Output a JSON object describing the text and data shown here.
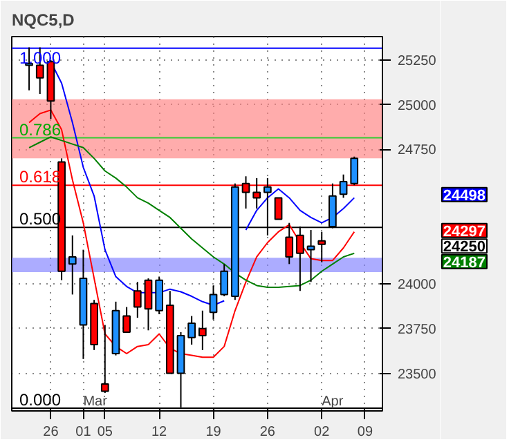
{
  "chart_data": {
    "type": "candlestick",
    "title": "NQC5,D",
    "categories": [
      null,
      null,
      "26",
      null,
      null,
      "01",
      null,
      "05",
      null,
      null,
      null,
      null,
      "12",
      null,
      null,
      null,
      null,
      "19",
      null,
      null,
      null,
      null,
      "26",
      null,
      null,
      null,
      null,
      "02",
      null,
      null,
      null,
      "09"
    ],
    "ohlc": [
      [
        25220,
        25320,
        25080,
        25230
      ],
      [
        25220,
        25320,
        25060,
        25150
      ],
      [
        25240,
        25250,
        24920,
        25020
      ],
      [
        24680,
        24700,
        24020,
        24070
      ],
      [
        24110,
        24270,
        23940,
        24150
      ],
      [
        23770,
        24190,
        23580,
        24030
      ],
      [
        23890,
        23910,
        23630,
        23660
      ],
      [
        23440,
        23770,
        23390,
        23400
      ],
      [
        23610,
        23900,
        23600,
        23850
      ],
      [
        23820,
        23870,
        23730,
        23730
      ],
      [
        23960,
        24010,
        23810,
        23870
      ],
      [
        24020,
        24030,
        23740,
        23860
      ],
      [
        23850,
        24040,
        23830,
        24020
      ],
      [
        23880,
        23960,
        23500,
        23500
      ],
      [
        23500,
        23730,
        23310,
        23710
      ],
      [
        23700,
        23820,
        23660,
        23780
      ],
      [
        23750,
        23850,
        23630,
        23710
      ],
      [
        23840,
        23990,
        23800,
        23940
      ],
      [
        23940,
        24110,
        23930,
        24070
      ],
      [
        23930,
        24560,
        23910,
        24540
      ],
      [
        24560,
        24600,
        24420,
        24510
      ],
      [
        24510,
        24590,
        24420,
        24480
      ],
      [
        24510,
        24590,
        24270,
        24540
      ],
      [
        24480,
        24480,
        24360,
        24360
      ],
      [
        24260,
        24340,
        24110,
        24150
      ],
      [
        24270,
        24320,
        23960,
        24170
      ],
      [
        24190,
        24300,
        24010,
        24210
      ],
      [
        24240,
        24290,
        24120,
        24220
      ],
      [
        24320,
        24560,
        24310,
        24490
      ],
      [
        24500,
        24610,
        24480,
        24570
      ],
      [
        24560,
        24710,
        24550,
        24700
      ],
      null
    ],
    "colors": [
      "#1e90ff",
      "#ff0000",
      "#ff0000",
      "#ff0000",
      "#1e90ff",
      "#1e90ff",
      "#ff0000",
      "#ff0000",
      "#1e90ff",
      "#ff0000",
      "#ff0000",
      "#ff0000",
      "#1e90ff",
      "#ff0000",
      "#1e90ff",
      "#1e90ff",
      "#ff0000",
      "#1e90ff",
      "#1e90ff",
      "#1e90ff",
      "#ff0000",
      "#ff0000",
      "#1e90ff",
      "#ff0000",
      "#ff0000",
      "#ff0000",
      "#1e90ff",
      "#ff0000",
      "#1e90ff",
      "#1e90ff",
      "#1e90ff",
      null
    ],
    "series": [
      {
        "type": "line",
        "color": "#0000ff",
        "values": [
          null,
          null,
          25240,
          25120,
          24900,
          24650,
          24490,
          24190,
          24040,
          23985,
          23950,
          23950,
          23950,
          23970,
          23955,
          23930,
          23900,
          23880,
          23905,
          null,
          24300,
          24410,
          24480,
          24530,
          24480,
          24410,
          24370,
          24340,
          24370,
          24420,
          24480,
          null
        ]
      },
      {
        "type": "line",
        "color": "#ff0000",
        "values": [
          24900,
          24950,
          24970,
          24860,
          24580,
          24340,
          24030,
          23720,
          23650,
          23610,
          23650,
          23660,
          23720,
          23640,
          23610,
          23600,
          23590,
          23590,
          23650,
          23850,
          24010,
          24150,
          24230,
          24290,
          24330,
          24230,
          24140,
          24130,
          24130,
          24200,
          24290,
          null
        ]
      },
      {
        "type": "line",
        "color": "#008000",
        "values": [
          24760,
          24790,
          24820,
          24800,
          24780,
          24760,
          24700,
          24630,
          24590,
          24540,
          24480,
          24450,
          24410,
          24370,
          24310,
          24250,
          24200,
          24150,
          24110,
          24060,
          24020,
          23990,
          23980,
          23980,
          23985,
          23990,
          24020,
          24070,
          24110,
          24150,
          24170,
          null
        ]
      }
    ],
    "ref_lines": [
      {
        "axis": "y",
        "value": 25315,
        "color": "#0000ff"
      },
      {
        "axis": "y",
        "value": 24815,
        "color": "#33cc33"
      },
      {
        "axis": "y",
        "value": 24550,
        "color": "#ff0000"
      },
      {
        "axis": "y",
        "value": 24315,
        "color": "#000000"
      },
      {
        "axis": "y",
        "value": 23305,
        "color": "#000000"
      }
    ],
    "bands": [
      {
        "axis": "y",
        "from": 24700,
        "to": 25030,
        "color": "#ff8080"
      },
      {
        "axis": "y",
        "from": 24065,
        "to": 24145,
        "color": "#8080ff"
      }
    ],
    "annotations": [
      {
        "text": "1.000",
        "y": 25315
      },
      {
        "text": "0.786",
        "y": 24815
      },
      {
        "text": "0.618",
        "y": 24550
      },
      {
        "text": "0.500",
        "y": 24315
      },
      {
        "text": "0.000",
        "y": 23305
      },
      "24498",
      "24297",
      "24250",
      "24187",
      {
        "text": "Mar",
        "x": "01"
      },
      {
        "text": "Apr",
        "x": "02"
      }
    ],
    "ylim": [
      23290,
      25380
    ],
    "yticks": [
      23500,
      23750,
      24000,
      24750,
      25000,
      25250
    ],
    "grid": true,
    "marker": "none",
    "line_style": "solid"
  }
}
